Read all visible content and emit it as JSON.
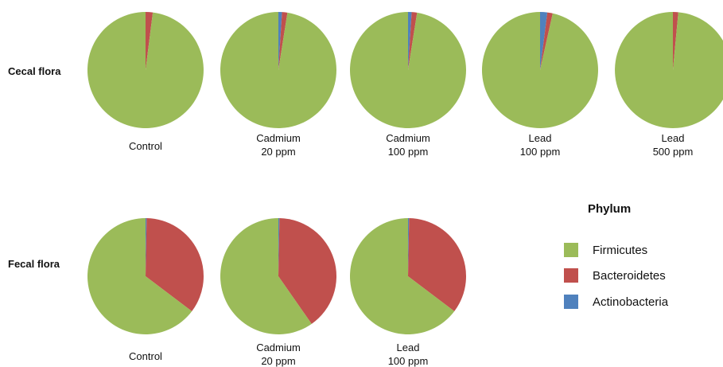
{
  "colors": {
    "Firmicutes": "#9bbb59",
    "Bacteroidetes": "#c0504d",
    "Actinobacteria": "#4f81bd"
  },
  "legend": {
    "title": "Phylum",
    "items": [
      "Firmicutes",
      "Bacteroidetes",
      "Actinobacteria"
    ]
  },
  "rows": [
    {
      "label": "Cecal flora"
    },
    {
      "label": "Fecal flora"
    }
  ],
  "chart_data": {
    "type": "pie",
    "series_order": [
      "Actinobacteria",
      "Bacteroidetes",
      "Firmicutes"
    ],
    "pies": [
      {
        "row": "Cecal flora",
        "label": [
          "Control"
        ],
        "values": {
          "Actinobacteria": 0.0,
          "Bacteroidetes": 2.0,
          "Firmicutes": 98.0
        }
      },
      {
        "row": "Cecal flora",
        "label": [
          "Cadmium",
          "20 ppm"
        ],
        "values": {
          "Actinobacteria": 1.0,
          "Bacteroidetes": 1.5,
          "Firmicutes": 97.5
        }
      },
      {
        "row": "Cecal flora",
        "label": [
          "Cadmium",
          "100 ppm"
        ],
        "values": {
          "Actinobacteria": 1.0,
          "Bacteroidetes": 1.5,
          "Firmicutes": 97.5
        }
      },
      {
        "row": "Cecal flora",
        "label": [
          "Lead",
          "100 ppm"
        ],
        "values": {
          "Actinobacteria": 2.0,
          "Bacteroidetes": 1.5,
          "Firmicutes": 96.5
        }
      },
      {
        "row": "Cecal flora",
        "label": [
          "Lead",
          "500 ppm"
        ],
        "values": {
          "Actinobacteria": 0.0,
          "Bacteroidetes": 1.5,
          "Firmicutes": 98.5
        }
      },
      {
        "row": "Fecal flora",
        "label": [
          "Control"
        ],
        "values": {
          "Actinobacteria": 0.3,
          "Bacteroidetes": 35.0,
          "Firmicutes": 64.7
        }
      },
      {
        "row": "Fecal flora",
        "label": [
          "Cadmium",
          "20 ppm"
        ],
        "values": {
          "Actinobacteria": 0.3,
          "Bacteroidetes": 40.0,
          "Firmicutes": 59.7
        }
      },
      {
        "row": "Fecal flora",
        "label": [
          "Lead",
          "100 ppm"
        ],
        "values": {
          "Actinobacteria": 0.3,
          "Bacteroidetes": 35.0,
          "Firmicutes": 64.7
        }
      }
    ]
  }
}
